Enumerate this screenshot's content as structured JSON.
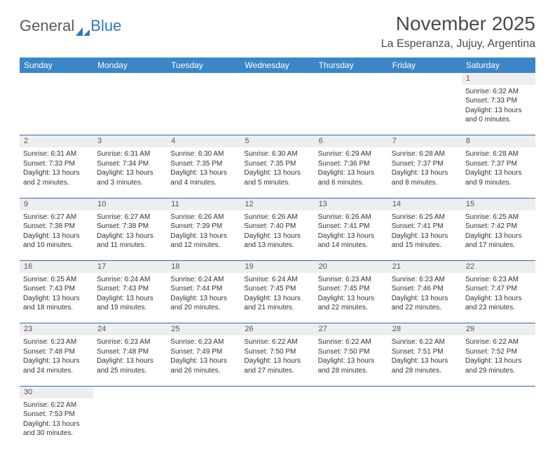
{
  "logo": {
    "text1": "General",
    "text2": "Blue"
  },
  "title": "November 2025",
  "location": "La Esperanza, Jujuy, Argentina",
  "colors": {
    "header_bg": "#3a86c8",
    "header_text": "#ffffff",
    "daynum_bg": "#eeeeee",
    "border": "#2e6aa8",
    "text": "#333333",
    "logo_gray": "#5a5a5a",
    "logo_blue": "#2e78c2"
  },
  "weekdays": [
    "Sunday",
    "Monday",
    "Tuesday",
    "Wednesday",
    "Thursday",
    "Friday",
    "Saturday"
  ],
  "weeks": [
    [
      null,
      null,
      null,
      null,
      null,
      null,
      {
        "n": "1",
        "sunrise": "Sunrise: 6:32 AM",
        "sunset": "Sunset: 7:33 PM",
        "daylight": "Daylight: 13 hours and 0 minutes."
      }
    ],
    [
      {
        "n": "2",
        "sunrise": "Sunrise: 6:31 AM",
        "sunset": "Sunset: 7:33 PM",
        "daylight": "Daylight: 13 hours and 2 minutes."
      },
      {
        "n": "3",
        "sunrise": "Sunrise: 6:31 AM",
        "sunset": "Sunset: 7:34 PM",
        "daylight": "Daylight: 13 hours and 3 minutes."
      },
      {
        "n": "4",
        "sunrise": "Sunrise: 6:30 AM",
        "sunset": "Sunset: 7:35 PM",
        "daylight": "Daylight: 13 hours and 4 minutes."
      },
      {
        "n": "5",
        "sunrise": "Sunrise: 6:30 AM",
        "sunset": "Sunset: 7:35 PM",
        "daylight": "Daylight: 13 hours and 5 minutes."
      },
      {
        "n": "6",
        "sunrise": "Sunrise: 6:29 AM",
        "sunset": "Sunset: 7:36 PM",
        "daylight": "Daylight: 13 hours and 6 minutes."
      },
      {
        "n": "7",
        "sunrise": "Sunrise: 6:28 AM",
        "sunset": "Sunset: 7:37 PM",
        "daylight": "Daylight: 13 hours and 8 minutes."
      },
      {
        "n": "8",
        "sunrise": "Sunrise: 6:28 AM",
        "sunset": "Sunset: 7:37 PM",
        "daylight": "Daylight: 13 hours and 9 minutes."
      }
    ],
    [
      {
        "n": "9",
        "sunrise": "Sunrise: 6:27 AM",
        "sunset": "Sunset: 7:38 PM",
        "daylight": "Daylight: 13 hours and 10 minutes."
      },
      {
        "n": "10",
        "sunrise": "Sunrise: 6:27 AM",
        "sunset": "Sunset: 7:38 PM",
        "daylight": "Daylight: 13 hours and 11 minutes."
      },
      {
        "n": "11",
        "sunrise": "Sunrise: 6:26 AM",
        "sunset": "Sunset: 7:39 PM",
        "daylight": "Daylight: 13 hours and 12 minutes."
      },
      {
        "n": "12",
        "sunrise": "Sunrise: 6:26 AM",
        "sunset": "Sunset: 7:40 PM",
        "daylight": "Daylight: 13 hours and 13 minutes."
      },
      {
        "n": "13",
        "sunrise": "Sunrise: 6:26 AM",
        "sunset": "Sunset: 7:41 PM",
        "daylight": "Daylight: 13 hours and 14 minutes."
      },
      {
        "n": "14",
        "sunrise": "Sunrise: 6:25 AM",
        "sunset": "Sunset: 7:41 PM",
        "daylight": "Daylight: 13 hours and 15 minutes."
      },
      {
        "n": "15",
        "sunrise": "Sunrise: 6:25 AM",
        "sunset": "Sunset: 7:42 PM",
        "daylight": "Daylight: 13 hours and 17 minutes."
      }
    ],
    [
      {
        "n": "16",
        "sunrise": "Sunrise: 6:25 AM",
        "sunset": "Sunset: 7:43 PM",
        "daylight": "Daylight: 13 hours and 18 minutes."
      },
      {
        "n": "17",
        "sunrise": "Sunrise: 6:24 AM",
        "sunset": "Sunset: 7:43 PM",
        "daylight": "Daylight: 13 hours and 19 minutes."
      },
      {
        "n": "18",
        "sunrise": "Sunrise: 6:24 AM",
        "sunset": "Sunset: 7:44 PM",
        "daylight": "Daylight: 13 hours and 20 minutes."
      },
      {
        "n": "19",
        "sunrise": "Sunrise: 6:24 AM",
        "sunset": "Sunset: 7:45 PM",
        "daylight": "Daylight: 13 hours and 21 minutes."
      },
      {
        "n": "20",
        "sunrise": "Sunrise: 6:23 AM",
        "sunset": "Sunset: 7:45 PM",
        "daylight": "Daylight: 13 hours and 22 minutes."
      },
      {
        "n": "21",
        "sunrise": "Sunrise: 6:23 AM",
        "sunset": "Sunset: 7:46 PM",
        "daylight": "Daylight: 13 hours and 22 minutes."
      },
      {
        "n": "22",
        "sunrise": "Sunrise: 6:23 AM",
        "sunset": "Sunset: 7:47 PM",
        "daylight": "Daylight: 13 hours and 23 minutes."
      }
    ],
    [
      {
        "n": "23",
        "sunrise": "Sunrise: 6:23 AM",
        "sunset": "Sunset: 7:48 PM",
        "daylight": "Daylight: 13 hours and 24 minutes."
      },
      {
        "n": "24",
        "sunrise": "Sunrise: 6:23 AM",
        "sunset": "Sunset: 7:48 PM",
        "daylight": "Daylight: 13 hours and 25 minutes."
      },
      {
        "n": "25",
        "sunrise": "Sunrise: 6:23 AM",
        "sunset": "Sunset: 7:49 PM",
        "daylight": "Daylight: 13 hours and 26 minutes."
      },
      {
        "n": "26",
        "sunrise": "Sunrise: 6:22 AM",
        "sunset": "Sunset: 7:50 PM",
        "daylight": "Daylight: 13 hours and 27 minutes."
      },
      {
        "n": "27",
        "sunrise": "Sunrise: 6:22 AM",
        "sunset": "Sunset: 7:50 PM",
        "daylight": "Daylight: 13 hours and 28 minutes."
      },
      {
        "n": "28",
        "sunrise": "Sunrise: 6:22 AM",
        "sunset": "Sunset: 7:51 PM",
        "daylight": "Daylight: 13 hours and 28 minutes."
      },
      {
        "n": "29",
        "sunrise": "Sunrise: 6:22 AM",
        "sunset": "Sunset: 7:52 PM",
        "daylight": "Daylight: 13 hours and 29 minutes."
      }
    ],
    [
      {
        "n": "30",
        "sunrise": "Sunrise: 6:22 AM",
        "sunset": "Sunset: 7:53 PM",
        "daylight": "Daylight: 13 hours and 30 minutes."
      },
      null,
      null,
      null,
      null,
      null,
      null
    ]
  ]
}
